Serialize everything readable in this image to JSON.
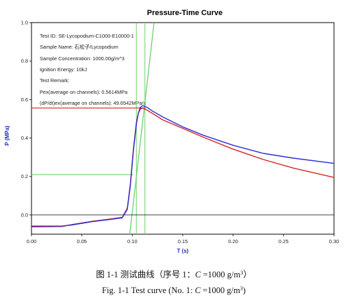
{
  "chart_data": {
    "type": "line",
    "title": "Pressure-Time Curve",
    "xlabel": "T (s)",
    "ylabel": "P (MPa)",
    "xlim": [
      0,
      0.3
    ],
    "ylim": [
      -0.1,
      1.0
    ],
    "x_ticks": [
      "0.00",
      "0.05",
      "0.10",
      "0.15",
      "0.20",
      "0.25",
      "0.30"
    ],
    "y_ticks": [
      "0.0",
      "0.2",
      "0.4",
      "0.6",
      "0.8",
      "1.0"
    ],
    "info_lines": [
      "Test ID: SE-Lycopodium-C1000-E10000-1",
      "Sample  Name: 石松子/Lycopodium",
      "Sample Concentration: 1000.00g/m^3",
      "Ignition Energy: 10kJ",
      "Test Remark:",
      "Pex(average on channels): 0.5614MPa",
      "(dP/dt)ex(average on channels): 49.6542MPa/s"
    ],
    "series": [
      {
        "color": "#2b2bd6",
        "x": [
          0.0,
          0.03,
          0.04,
          0.06,
          0.08,
          0.09,
          0.095,
          0.098,
          0.101,
          0.104,
          0.106,
          0.108,
          0.11,
          0.112,
          0.115,
          0.12,
          0.13,
          0.15,
          0.17,
          0.2,
          0.23,
          0.26,
          0.3
        ],
        "y": [
          -0.058,
          -0.058,
          -0.052,
          -0.035,
          -0.022,
          -0.015,
          0.03,
          0.15,
          0.33,
          0.47,
          0.53,
          0.56,
          0.568,
          0.566,
          0.558,
          0.54,
          0.51,
          0.458,
          0.415,
          0.362,
          0.32,
          0.295,
          0.268
        ]
      },
      {
        "color": "#d42424",
        "x": [
          0.0,
          0.03,
          0.04,
          0.06,
          0.08,
          0.09,
          0.095,
          0.098,
          0.101,
          0.104,
          0.106,
          0.108,
          0.11,
          0.112,
          0.115,
          0.12,
          0.13,
          0.15,
          0.17,
          0.2,
          0.23,
          0.26,
          0.3
        ],
        "y": [
          -0.062,
          -0.06,
          -0.05,
          -0.033,
          -0.02,
          -0.012,
          0.035,
          0.16,
          0.34,
          0.48,
          0.53,
          0.55,
          0.556,
          0.552,
          0.544,
          0.528,
          0.495,
          0.45,
          0.405,
          0.342,
          0.288,
          0.243,
          0.195
        ]
      }
    ],
    "reference_lines": {
      "horizontal_red_y": 0.556,
      "horizontal_green_y": 0.21,
      "baseline_y": 0.0,
      "vertical_green_x": [
        0.104,
        0.1125
      ],
      "tangent_x": [
        0.097,
        0.122
      ],
      "tangent_y": [
        -0.12,
        1.02
      ]
    },
    "colors": {
      "title": "#000000",
      "axis_label": "#1f2db0",
      "red_line": "#e03030",
      "green_line": "#6dd06d"
    }
  },
  "captions": {
    "zh": "图 1-1 测试曲线（序号 1：",
    "zh_formula_c": "C",
    "zh_formula_rest": " =1000 g/m",
    "zh_sup": "3",
    "zh_close": "）",
    "en": "Fig. 1-1 Test curve (No. 1: ",
    "en_formula_c": "C",
    "en_formula_rest": " =1000 g/m",
    "en_sup": "3",
    "en_close": ")"
  }
}
